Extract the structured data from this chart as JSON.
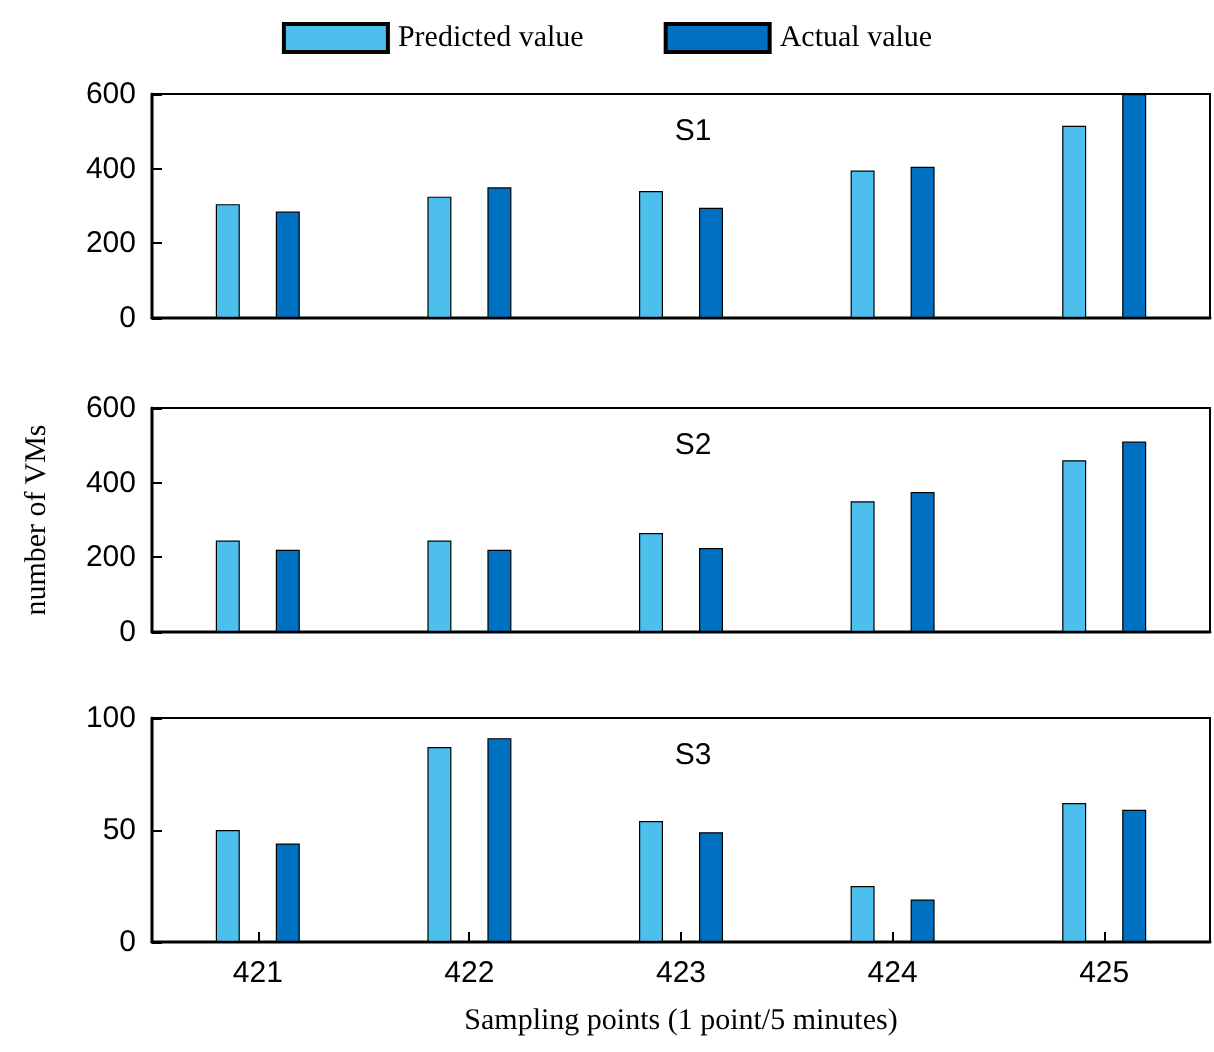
{
  "chart_data": [
    {
      "type": "bar",
      "title": "S1",
      "categories": [
        "421",
        "422",
        "423",
        "424",
        "425"
      ],
      "series": [
        {
          "name": "Predicted value",
          "color": "#4dbfed",
          "values": [
            305,
            325,
            340,
            395,
            515
          ]
        },
        {
          "name": "Actual value",
          "color": "#0070c0",
          "values": [
            285,
            350,
            295,
            405,
            600
          ]
        }
      ],
      "ylim": [
        0,
        600
      ],
      "yticks": [
        0,
        200,
        400,
        600
      ],
      "tick_labels": "y",
      "legend": "top",
      "grid": false
    },
    {
      "type": "bar",
      "title": "S2",
      "ylabel": "number of VMs",
      "categories": [
        "421",
        "422",
        "423",
        "424",
        "425"
      ],
      "series": [
        {
          "color": "#4dbfed",
          "values": [
            245,
            245,
            265,
            350,
            460
          ]
        },
        {
          "color": "#0070c0",
          "values": [
            220,
            220,
            225,
            375,
            510
          ]
        }
      ],
      "ylim": [
        0,
        600
      ],
      "yticks": [
        0,
        200,
        400,
        600
      ],
      "tick_labels": "y",
      "legend": false,
      "grid": false
    },
    {
      "type": "bar",
      "title": "S3",
      "xlabel": "Sampling points (1 point/5 minutes)",
      "categories": [
        "421",
        "422",
        "423",
        "424",
        "425"
      ],
      "series": [
        {
          "color": "#4dbfed",
          "values": [
            50,
            87,
            54,
            25,
            62
          ]
        },
        {
          "color": "#0070c0",
          "values": [
            44,
            91,
            49,
            19,
            59
          ]
        }
      ],
      "ylim": [
        0,
        100
      ],
      "yticks": [
        0,
        50,
        100
      ],
      "legend": false,
      "grid": false
    }
  ]
}
